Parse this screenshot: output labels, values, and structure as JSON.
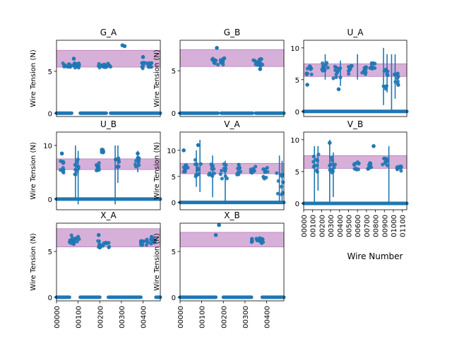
{
  "chart_data": [
    {
      "type": "scatter",
      "title": "G_A",
      "ylabel": "Wire Tension (N)",
      "xlabel": "",
      "xlim": [
        0,
        480
      ],
      "ylim": [
        -0.4,
        8.7
      ],
      "yticks": [
        0,
        5
      ],
      "xticks": [],
      "band": [
        5.5,
        7.5
      ],
      "band_color": "#d7b0d9",
      "point_color": "#1f77b4",
      "zero_spans": [
        [
          0,
          70
        ],
        [
          110,
          230
        ],
        [
          250,
          480
        ]
      ],
      "clusters": [
        {
          "x": [
            30,
            110
          ],
          "y": 5.7,
          "spread": 0.3
        },
        {
          "x": [
            190,
            250
          ],
          "y": 5.7,
          "spread": 0.3
        },
        {
          "x": [
            395,
            445
          ],
          "y": 5.7,
          "spread": 0.35
        }
      ],
      "outliers": [
        [
          80,
          6.5
        ],
        [
          305,
          8.1
        ],
        [
          315,
          8.0
        ],
        [
          400,
          6.7
        ]
      ],
      "errorbars": []
    },
    {
      "type": "scatter",
      "title": "G_B",
      "ylabel": "Wire Tension (N)",
      "xlabel": "",
      "xlim": [
        0,
        480
      ],
      "ylim": [
        -0.4,
        8.6
      ],
      "yticks": [
        0,
        5
      ],
      "xticks": [],
      "band": [
        5.5,
        7.5
      ],
      "band_color": "#d7b0d9",
      "point_color": "#1f77b4",
      "zero_spans": [
        [
          0,
          175
        ],
        [
          190,
          335
        ],
        [
          350,
          480
        ]
      ],
      "clusters": [
        {
          "x": [
            145,
            205
          ],
          "y": 6.1,
          "spread": 0.4
        },
        {
          "x": [
            335,
            385
          ],
          "y": 6.0,
          "spread": 0.45
        }
      ],
      "outliers": [
        [
          170,
          7.7
        ],
        [
          370,
          5.2
        ]
      ],
      "errorbars": []
    },
    {
      "type": "scatter",
      "title": "U_A",
      "ylabel": "",
      "xlabel": "",
      "xlim": [
        0,
        1150
      ],
      "ylim": [
        -0.8,
        11.2
      ],
      "yticks": [
        0,
        5,
        10
      ],
      "xticks": [],
      "band": [
        5.5,
        7.5
      ],
      "band_color": "#d7b0d9",
      "point_color": "#1f77b4",
      "zero_spans": [
        [
          0,
          1150
        ]
      ],
      "clusters": [
        {
          "x": [
            30,
            90
          ],
          "y": 6.5,
          "spread": 0.7
        },
        {
          "x": [
            200,
            270
          ],
          "y": 7.0,
          "spread": 0.7
        },
        {
          "x": [
            330,
            410
          ],
          "y": 6.2,
          "spread": 1.0
        },
        {
          "x": [
            480,
            540
          ],
          "y": 6.5,
          "spread": 0.7
        },
        {
          "x": [
            640,
            700
          ],
          "y": 6.5,
          "spread": 0.8
        },
        {
          "x": [
            740,
            800
          ],
          "y": 7.2,
          "spread": 0.5
        },
        {
          "x": [
            880,
            940
          ],
          "y": 5.5,
          "spread": 2.0
        },
        {
          "x": [
            1010,
            1060
          ],
          "y": 5.5,
          "spread": 1.5
        }
      ],
      "outliers": [
        [
          40,
          4.2
        ],
        [
          390,
          3.5
        ]
      ],
      "errorbars": [
        [
          240,
          5,
          9
        ],
        [
          410,
          4,
          8
        ],
        [
          600,
          5,
          9
        ],
        [
          890,
          1,
          10
        ],
        [
          930,
          3,
          9
        ],
        [
          980,
          0,
          9
        ],
        [
          1020,
          2,
          9
        ]
      ]
    },
    {
      "type": "scatter",
      "title": "U_B",
      "ylabel": "Wire Tension (N)",
      "xlabel": "",
      "xlim": [
        0,
        1150
      ],
      "ylim": [
        -2.0,
        12.5
      ],
      "yticks": [
        0,
        10
      ],
      "xticks": [],
      "band": [
        5.5,
        7.5
      ],
      "band_color": "#d7b0d9",
      "point_color": "#1f77b4",
      "zero_spans": [
        [
          0,
          1150
        ]
      ],
      "clusters": [
        {
          "x": [
            40,
            80
          ],
          "y": 6.0,
          "spread": 1.2
        },
        {
          "x": [
            200,
            260
          ],
          "y": 6.0,
          "spread": 1.5
        },
        {
          "x": [
            440,
            480
          ],
          "y": 6.0,
          "spread": 0.8
        },
        {
          "x": [
            500,
            520
          ],
          "y": 9.0,
          "spread": 0.3
        },
        {
          "x": [
            640,
            700
          ],
          "y": 6.5,
          "spread": 1.2
        },
        {
          "x": [
            870,
            920
          ],
          "y": 7.0,
          "spread": 1.0
        }
      ],
      "outliers": [
        [
          60,
          8.5
        ],
        [
          900,
          8.5
        ]
      ],
      "errorbars": [
        [
          210,
          0,
          10
        ],
        [
          240,
          -1,
          9
        ],
        [
          650,
          -1,
          10
        ],
        [
          680,
          3,
          10
        ],
        [
          900,
          5,
          9
        ]
      ]
    },
    {
      "type": "scatter",
      "title": "V_A",
      "ylabel": "Wire Tension (N)",
      "xlabel": "",
      "xlim": [
        0,
        1150
      ],
      "ylim": [
        -1.4,
        13.5
      ],
      "yticks": [
        0,
        5,
        10
      ],
      "xticks": [],
      "band": [
        5.5,
        7.5
      ],
      "band_color": "#d7b0d9",
      "point_color": "#1f77b4",
      "zero_spans": [
        [
          0,
          1150
        ]
      ],
      "clusters": [
        {
          "x": [
            20,
            90
          ],
          "y": 6.5,
          "spread": 1.2
        },
        {
          "x": [
            160,
            240
          ],
          "y": 6.8,
          "spread": 2.0
        },
        {
          "x": [
            310,
            380
          ],
          "y": 6.2,
          "spread": 1.5
        },
        {
          "x": [
            440,
            520
          ],
          "y": 6.0,
          "spread": 1.5
        },
        {
          "x": [
            600,
            670
          ],
          "y": 6.3,
          "spread": 1.0
        },
        {
          "x": [
            780,
            850
          ],
          "y": 6.2,
          "spread": 1.0
        },
        {
          "x": [
            920,
            970
          ],
          "y": 5.5,
          "spread": 1.3
        },
        {
          "x": [
            1070,
            1140
          ],
          "y": 4.0,
          "spread": 2.5
        }
      ],
      "outliers": [
        [
          40,
          10.0
        ],
        [
          200,
          11.0
        ]
      ],
      "errorbars": [
        [
          180,
          3,
          10
        ],
        [
          220,
          2,
          12
        ],
        [
          360,
          1,
          9
        ],
        [
          500,
          0,
          8
        ],
        [
          1100,
          0,
          9
        ],
        [
          1130,
          0,
          8
        ]
      ]
    },
    {
      "type": "scatter",
      "title": "V_B",
      "ylabel": "",
      "xlabel": "Wire Number",
      "xlim": [
        0,
        1150
      ],
      "ylim": [
        -1.0,
        11.2
      ],
      "yticks": [
        0,
        5,
        10
      ],
      "xticks": [
        "00000",
        "00100",
        "00200",
        "00300",
        "00400",
        "00500",
        "00600",
        "00700",
        "00800",
        "00900",
        "01000",
        "01100"
      ],
      "band": [
        5.5,
        7.5
      ],
      "band_color": "#d7b0d9",
      "point_color": "#1f77b4",
      "zero_spans": [
        [
          0,
          1150
        ]
      ],
      "clusters": [
        {
          "x": [
            100,
            170
          ],
          "y": 6.2,
          "spread": 1.5
        },
        {
          "x": [
            280,
            350
          ],
          "y": 6.0,
          "spread": 1.2
        },
        {
          "x": [
            560,
            620
          ],
          "y": 6.0,
          "spread": 0.7
        },
        {
          "x": [
            710,
            760
          ],
          "y": 5.8,
          "spread": 0.7
        },
        {
          "x": [
            880,
            940
          ],
          "y": 6.4,
          "spread": 0.7
        },
        {
          "x": [
            1040,
            1090
          ],
          "y": 5.5,
          "spread": 0.4
        }
      ],
      "outliers": [
        [
          780,
          9.0
        ],
        [
          290,
          9.5
        ]
      ],
      "errorbars": [
        [
          120,
          0,
          9
        ],
        [
          160,
          2,
          9
        ],
        [
          290,
          0,
          10
        ],
        [
          330,
          1,
          8
        ],
        [
          950,
          0,
          9
        ]
      ]
    },
    {
      "type": "scatter",
      "title": "X_A",
      "ylabel": "Wire Tension (N)",
      "xlabel": "",
      "xlim": [
        0,
        480
      ],
      "ylim": [
        -0.4,
        8.1
      ],
      "yticks": [
        0,
        5
      ],
      "xticks": [
        "00000",
        "00100",
        "00200",
        "00300",
        "00400"
      ],
      "band": [
        5.5,
        7.5
      ],
      "band_color": "#d7b0d9",
      "point_color": "#1f77b4",
      "zero_spans": [
        [
          0,
          60
        ],
        [
          110,
          200
        ],
        [
          240,
          390
        ],
        [
          460,
          480
        ]
      ],
      "clusters": [
        {
          "x": [
            60,
            110
          ],
          "y": 6.3,
          "spread": 0.5
        },
        {
          "x": [
            190,
            245
          ],
          "y": 5.8,
          "spread": 0.4
        },
        {
          "x": [
            390,
            460
          ],
          "y": 6.1,
          "spread": 0.4
        }
      ],
      "outliers": [
        [
          195,
          6.8
        ],
        [
          440,
          6.6
        ]
      ],
      "errorbars": []
    },
    {
      "type": "scatter",
      "title": "X_B",
      "ylabel": "Wire Tension (N)",
      "xlabel": "",
      "xlim": [
        0,
        480
      ],
      "ylim": [
        -0.4,
        8.1
      ],
      "yticks": [
        0,
        5
      ],
      "xticks": [
        "00000",
        "00100",
        "00200",
        "00300",
        "00400"
      ],
      "band": [
        5.5,
        7.1
      ],
      "band_color": "#d7b0d9",
      "point_color": "#1f77b4",
      "zero_spans": [
        [
          0,
          165
        ],
        [
          200,
          330
        ],
        [
          380,
          480
        ]
      ],
      "clusters": [
        {
          "x": [
            330,
            385
          ],
          "y": 6.2,
          "spread": 0.3
        }
      ],
      "outliers": [
        [
          165,
          6.8
        ],
        [
          180,
          7.9
        ]
      ],
      "errorbars": []
    }
  ]
}
